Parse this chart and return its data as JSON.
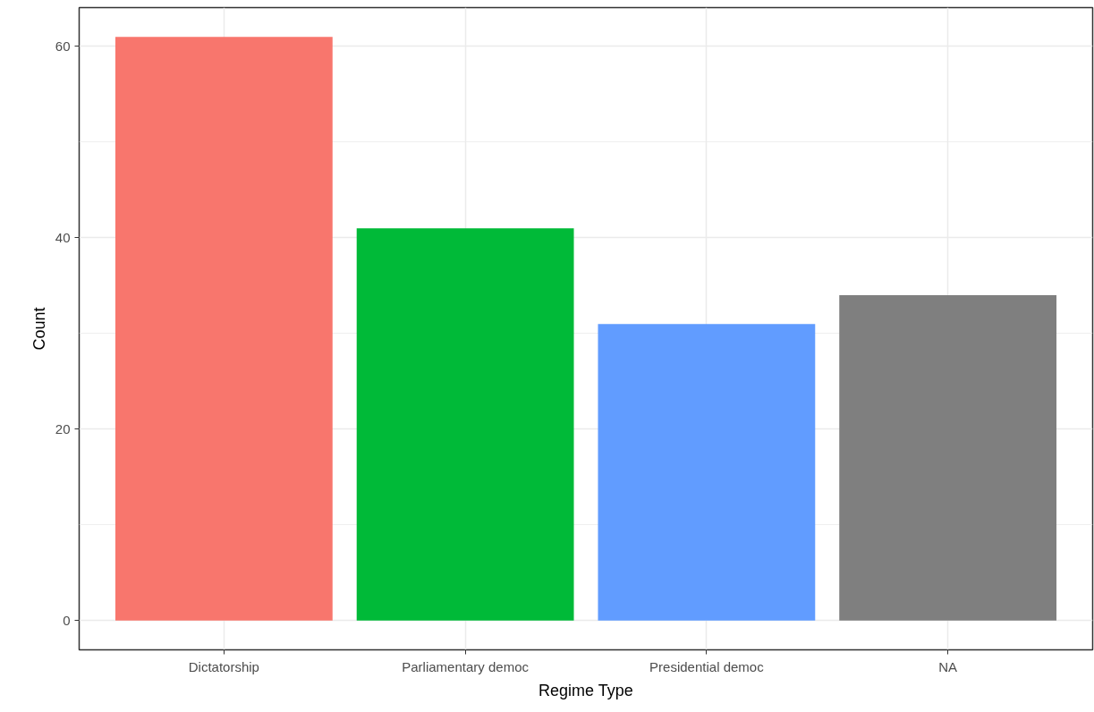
{
  "chart_data": {
    "type": "bar",
    "xlabel": "Regime Type",
    "ylabel": "Count",
    "categories": [
      "Dictatorship",
      "Parliamentary democ",
      "Presidential democ",
      "NA"
    ],
    "values": [
      61,
      41,
      31,
      34
    ],
    "colors": [
      "#f8766d",
      "#00ba38",
      "#619cff",
      "#7f7f7f"
    ],
    "ylim": [
      -3.05,
      64.05
    ],
    "yticks": [
      0,
      20,
      40,
      60
    ],
    "grid": true
  }
}
